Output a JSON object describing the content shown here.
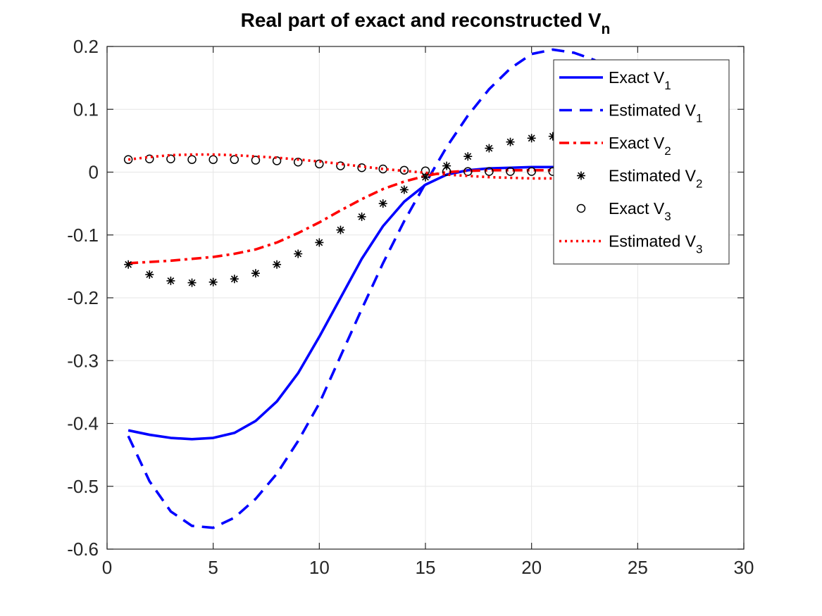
{
  "chart_data": {
    "type": "line",
    "title": "Real part of exact and reconstructed V",
    "title_subscript": "n",
    "xlabel": "",
    "ylabel": "",
    "xlim": [
      0,
      30
    ],
    "ylim": [
      -0.6,
      0.2
    ],
    "grid": true,
    "xticks": [
      0,
      5,
      10,
      15,
      20,
      25,
      30
    ],
    "xtick_labels": [
      "0",
      "5",
      "10",
      "15",
      "20",
      "25",
      "30"
    ],
    "yticks": [
      -0.6,
      -0.5,
      -0.4,
      -0.3,
      -0.2,
      -0.1,
      0,
      0.1,
      0.2
    ],
    "ytick_labels": [
      "-0.6",
      "-0.5",
      "-0.4",
      "-0.3",
      "-0.2",
      "-0.1",
      "0",
      "0.1",
      "0.2"
    ],
    "legend_position": "top-right",
    "series": [
      {
        "name": "Exact V",
        "sub": "1",
        "style": "solid",
        "color": "#0000ff",
        "x": [
          1,
          2,
          3,
          4,
          5,
          6,
          7,
          8,
          9,
          10,
          11,
          12,
          13,
          14,
          15,
          16,
          17,
          18,
          19,
          20,
          21,
          22
        ],
        "y": [
          -0.411,
          -0.418,
          -0.423,
          -0.425,
          -0.423,
          -0.415,
          -0.396,
          -0.365,
          -0.32,
          -0.262,
          -0.2,
          -0.138,
          -0.086,
          -0.047,
          -0.02,
          -0.004,
          0.003,
          0.006,
          0.007,
          0.008,
          0.008,
          0.007
        ]
      },
      {
        "name": "Estimated V",
        "sub": "1",
        "style": "dashed",
        "color": "#0000ff",
        "x": [
          1,
          2,
          3,
          4,
          5,
          6,
          7,
          8,
          9,
          10,
          11,
          12,
          13,
          14,
          15,
          16,
          17,
          18,
          19,
          20,
          21,
          22,
          23
        ],
        "y": [
          -0.42,
          -0.492,
          -0.54,
          -0.563,
          -0.566,
          -0.55,
          -0.52,
          -0.48,
          -0.428,
          -0.368,
          -0.293,
          -0.218,
          -0.145,
          -0.078,
          -0.018,
          0.04,
          0.09,
          0.132,
          0.165,
          0.188,
          0.195,
          0.19,
          0.178
        ]
      },
      {
        "name": "Exact V",
        "sub": "2",
        "style": "dashdot",
        "color": "#ff0000",
        "x": [
          1,
          2,
          3,
          4,
          5,
          6,
          7,
          8,
          9,
          10,
          11,
          12,
          13,
          14,
          15,
          16,
          17,
          18,
          19,
          20,
          21,
          22
        ],
        "y": [
          -0.145,
          -0.143,
          -0.141,
          -0.138,
          -0.135,
          -0.13,
          -0.123,
          -0.112,
          -0.097,
          -0.08,
          -0.061,
          -0.043,
          -0.027,
          -0.015,
          -0.006,
          0.0,
          0.002,
          0.003,
          0.003,
          0.003,
          0.003,
          0.003
        ]
      },
      {
        "name": "Estimated V",
        "sub": "2",
        "style": "asterisk",
        "color": "#000000",
        "x": [
          1,
          2,
          3,
          4,
          5,
          6,
          7,
          8,
          9,
          10,
          11,
          12,
          13,
          14,
          15,
          16,
          17,
          18,
          19,
          20,
          21
        ],
        "y": [
          -0.147,
          -0.163,
          -0.173,
          -0.176,
          -0.175,
          -0.17,
          -0.161,
          -0.147,
          -0.13,
          -0.112,
          -0.092,
          -0.071,
          -0.05,
          -0.028,
          -0.008,
          0.01,
          0.025,
          0.038,
          0.048,
          0.054,
          0.057
        ]
      },
      {
        "name": "Exact V",
        "sub": "3",
        "style": "circle",
        "color": "#000000",
        "x": [
          1,
          2,
          3,
          4,
          5,
          6,
          7,
          8,
          9,
          10,
          11,
          12,
          13,
          14,
          15,
          16,
          17,
          18,
          19,
          20,
          21
        ],
        "y": [
          0.02,
          0.021,
          0.021,
          0.02,
          0.02,
          0.02,
          0.019,
          0.018,
          0.016,
          0.013,
          0.01,
          0.007,
          0.005,
          0.003,
          0.002,
          0.001,
          0.001,
          0.001,
          0.001,
          0.001,
          0.001
        ]
      },
      {
        "name": "Estimated V",
        "sub": "3",
        "style": "dotted",
        "color": "#ff0000",
        "x": [
          1,
          2,
          3,
          4,
          5,
          6,
          7,
          8,
          9,
          10,
          11,
          12,
          13,
          14,
          15,
          16,
          17,
          18,
          19,
          20,
          21
        ],
        "y": [
          0.02,
          0.024,
          0.027,
          0.028,
          0.028,
          0.027,
          0.025,
          0.023,
          0.02,
          0.017,
          0.013,
          0.009,
          0.005,
          0.002,
          -0.001,
          -0.004,
          -0.006,
          -0.008,
          -0.009,
          -0.01,
          -0.01
        ]
      }
    ]
  }
}
